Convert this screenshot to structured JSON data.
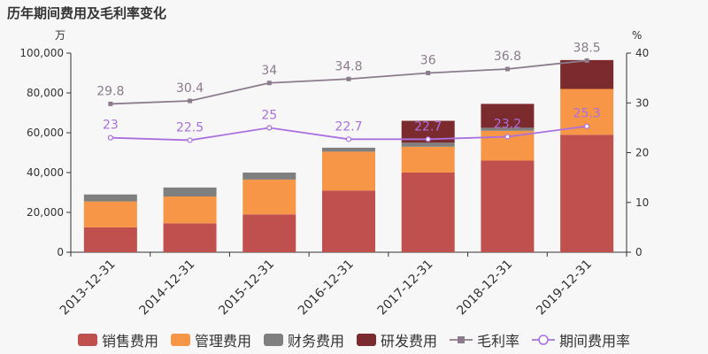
{
  "title": "历年期间费用及毛利率变化",
  "chart_data": {
    "type": "bar",
    "stacked": true,
    "categories": [
      "2013-12-31",
      "2014-12-31",
      "2015-12-31",
      "2016-12-31",
      "2017-12-31",
      "2018-12-31",
      "2019-12-31"
    ],
    "left_axis": {
      "unit": "万",
      "ylim": [
        0,
        100000
      ],
      "ticks": [
        "0",
        "20,000",
        "40,000",
        "60,000",
        "80,000",
        "100,000"
      ],
      "tick_values": [
        0,
        20000,
        40000,
        60000,
        80000,
        100000
      ]
    },
    "right_axis": {
      "unit": "%",
      "ylim": [
        0,
        40
      ],
      "ticks": [
        "0",
        "10",
        "20",
        "30",
        "40"
      ],
      "tick_values": [
        0,
        10,
        20,
        30,
        40
      ]
    },
    "series": [
      {
        "name": "销售费用",
        "kind": "bar",
        "axis": "left",
        "color": "#c0504d",
        "values": [
          12500,
          14500,
          19000,
          31000,
          40000,
          46000,
          59000
        ]
      },
      {
        "name": "管理费用",
        "kind": "bar",
        "axis": "left",
        "color": "#f79646",
        "values": [
          13000,
          13500,
          17500,
          19500,
          13000,
          15000,
          23000
        ]
      },
      {
        "name": "财务费用",
        "kind": "bar",
        "axis": "left",
        "color": "#7f7f7f",
        "values": [
          3500,
          4500,
          3500,
          2000,
          2000,
          1500,
          0
        ]
      },
      {
        "name": "研发费用",
        "kind": "bar",
        "axis": "left",
        "color": "#7b2a2e",
        "values": [
          0,
          0,
          0,
          0,
          11000,
          12000,
          14500
        ]
      },
      {
        "name": "毛利率",
        "kind": "line",
        "axis": "right",
        "color": "#8c7b8c",
        "values": [
          29.8,
          30.4,
          34,
          34.8,
          36,
          36.8,
          38.5
        ],
        "labels": [
          "29.8",
          "30.4",
          "34",
          "34.8",
          "36",
          "36.8",
          "38.5"
        ]
      },
      {
        "name": "期间费用率",
        "kind": "line",
        "axis": "right",
        "color": "#a970e0",
        "values": [
          23,
          22.5,
          25,
          22.7,
          22.7,
          23.2,
          25.3
        ],
        "labels": [
          "23",
          "22.5",
          "25",
          "22.7",
          "22.7",
          "23.2",
          "25.3"
        ]
      }
    ],
    "legend_position": "bottom",
    "grid": false
  }
}
